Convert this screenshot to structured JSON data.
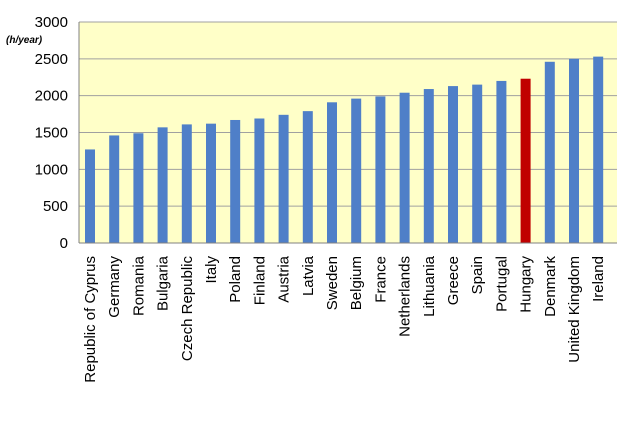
{
  "chart_data": {
    "type": "bar",
    "unit_label": "(h/year)",
    "categories": [
      "Republic of Cyprus",
      "Germany",
      "Romania",
      "Bulgaria",
      "Czech Republic",
      "Italy",
      "Poland",
      "Finland",
      "Austria",
      "Latvia",
      "Sweden",
      "Belgium",
      "France",
      "Netherlands",
      "Lithuania",
      "Greece",
      "Spain",
      "Portugal",
      "Hungary",
      "Denmark",
      "United Kingdom",
      "Ireland"
    ],
    "values": [
      1270,
      1460,
      1490,
      1570,
      1610,
      1620,
      1670,
      1690,
      1740,
      1790,
      1910,
      1960,
      1990,
      2040,
      2090,
      2130,
      2150,
      2200,
      2230,
      2460,
      2500,
      2530
    ],
    "highlight": "Hungary",
    "ylim": [
      0,
      3000
    ],
    "yticks": [
      0,
      500,
      1000,
      1500,
      2000,
      2500,
      3000
    ],
    "grid": true,
    "legend": "none",
    "colors": {
      "bar": "#4f7fc8",
      "highlight": "#c00000",
      "plot_background": "#ffffc8",
      "gridline": "#a0a0a0"
    }
  }
}
